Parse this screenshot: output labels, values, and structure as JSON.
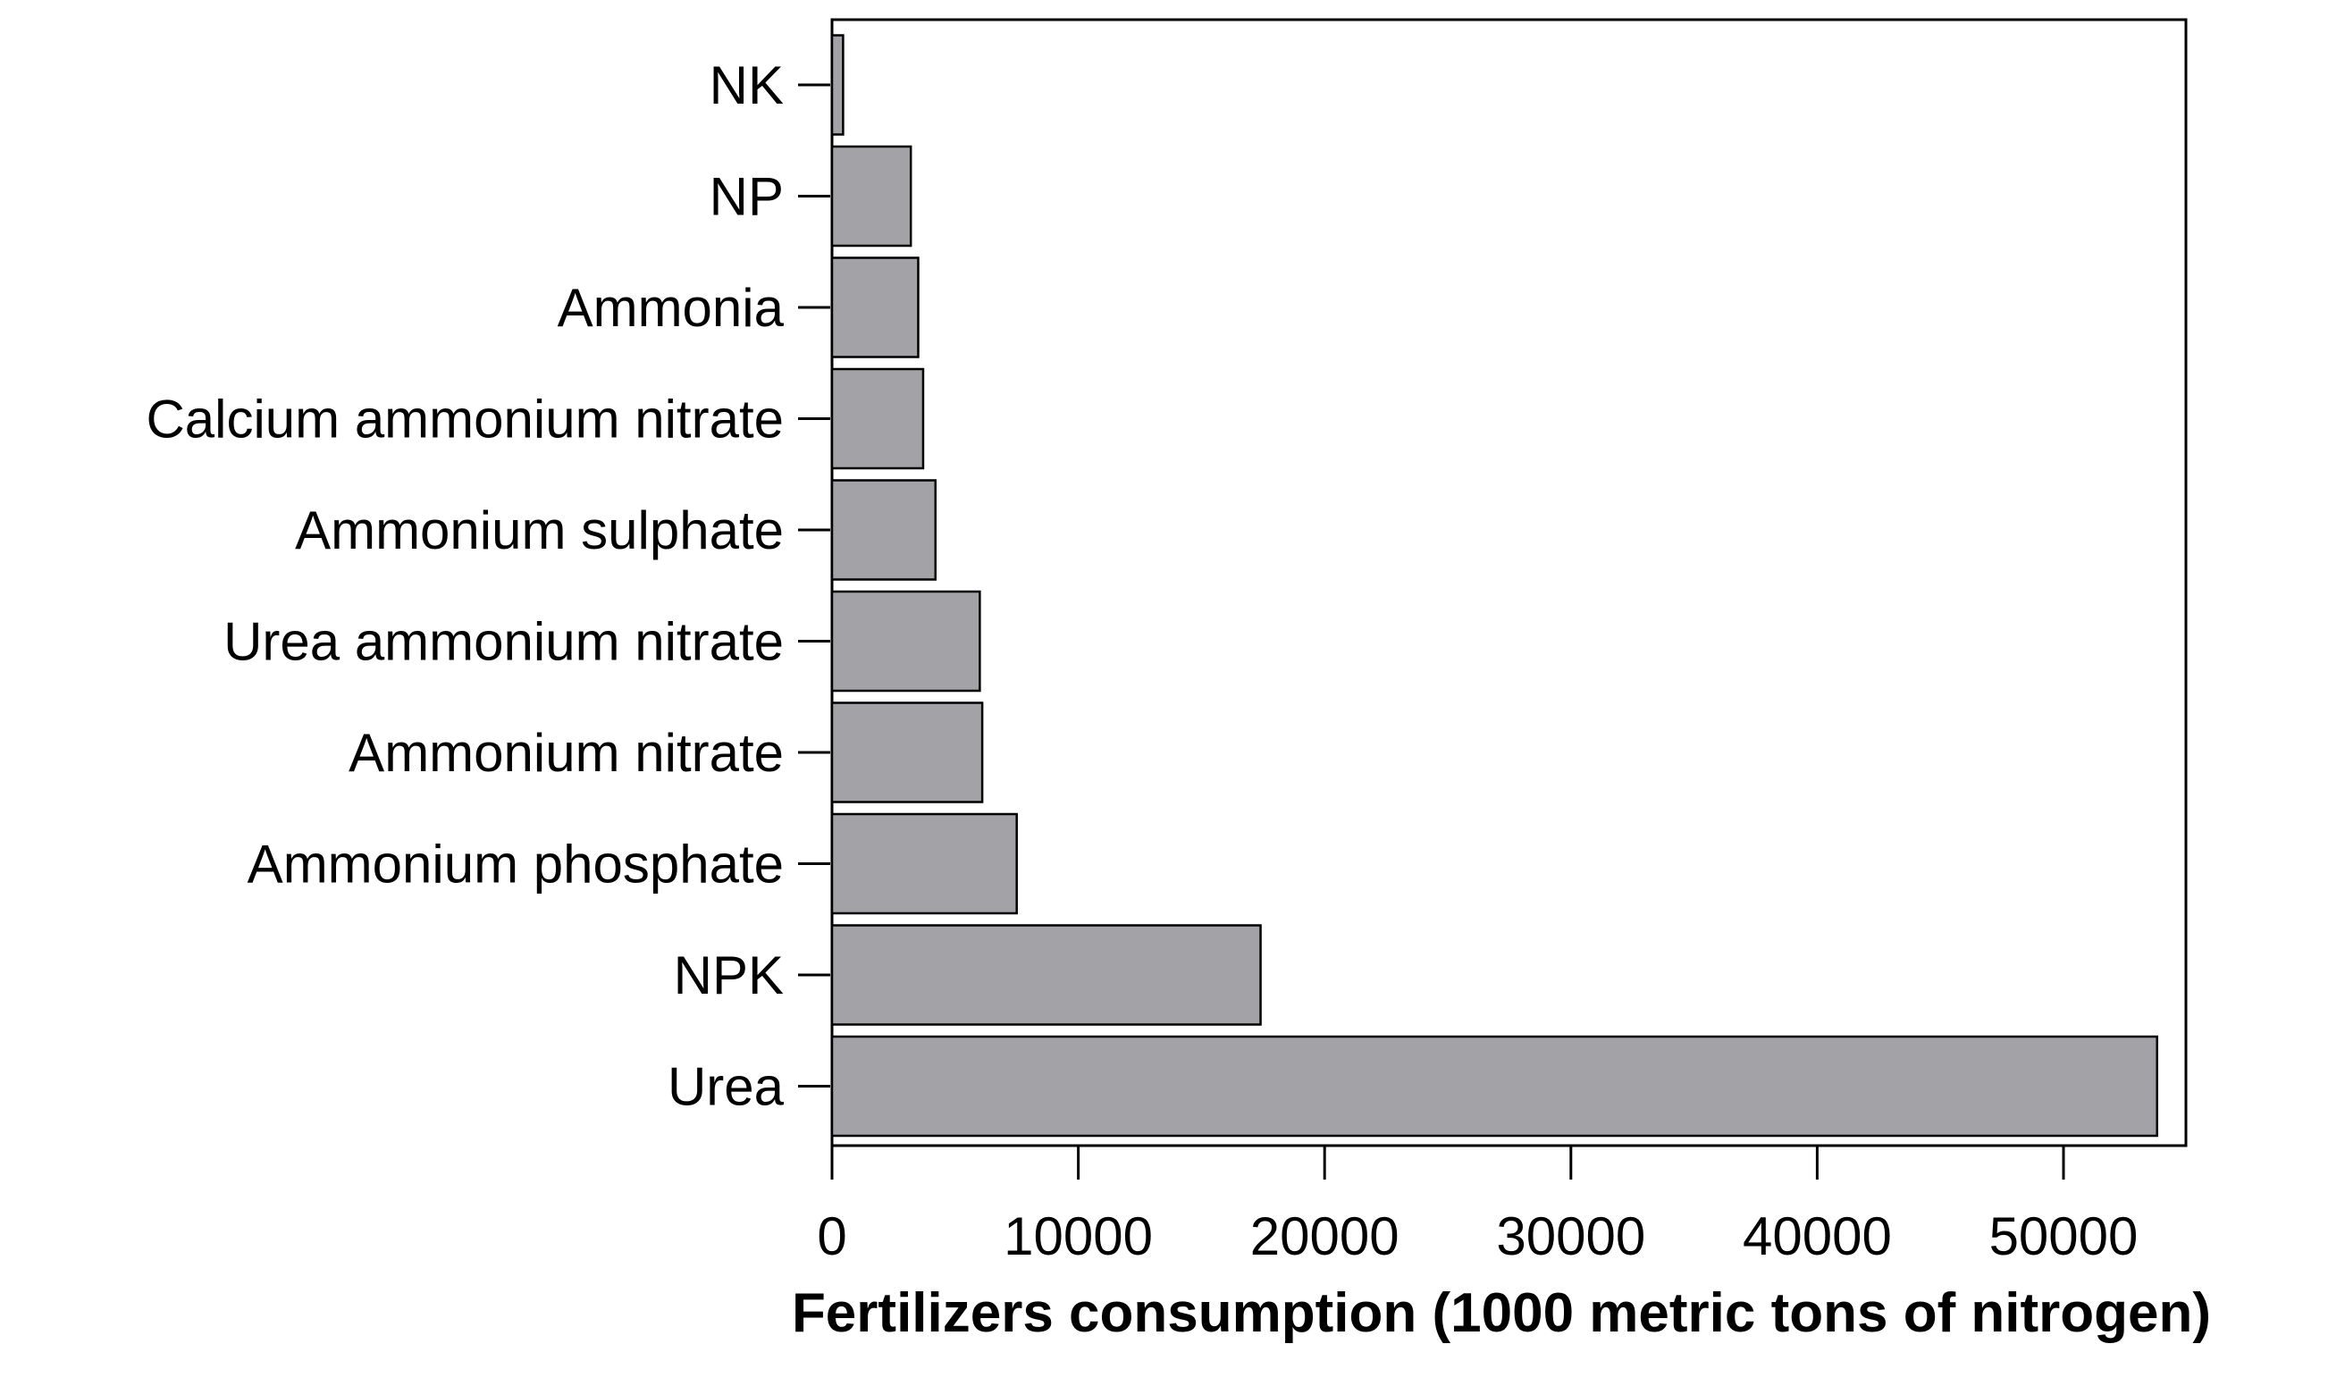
{
  "chart_data": {
    "type": "bar",
    "orientation": "horizontal",
    "categories": [
      "NK",
      "NP",
      "Ammonia",
      "Calcium ammonium nitrate",
      "Ammonium sulphate",
      "Urea ammonium nitrate",
      "Ammonium nitrate",
      "Ammonium phosphate",
      "NPK",
      "Urea"
    ],
    "values": [
      450,
      3200,
      3500,
      3700,
      4200,
      6000,
      6100,
      7500,
      17400,
      53800
    ],
    "xlabel": "Fertilizers consumption (1000 metric tons of nitrogen)",
    "ylabel": "",
    "xlim": [
      0,
      55000
    ],
    "xticks": [
      0,
      10000,
      20000,
      30000,
      40000,
      50000
    ],
    "xtick_labels": [
      "0",
      "10000",
      "20000",
      "30000",
      "40000",
      "50000"
    ],
    "grid": false,
    "legend": "none",
    "bar_color": "#a3a2a7",
    "edge_color": "#000000"
  }
}
